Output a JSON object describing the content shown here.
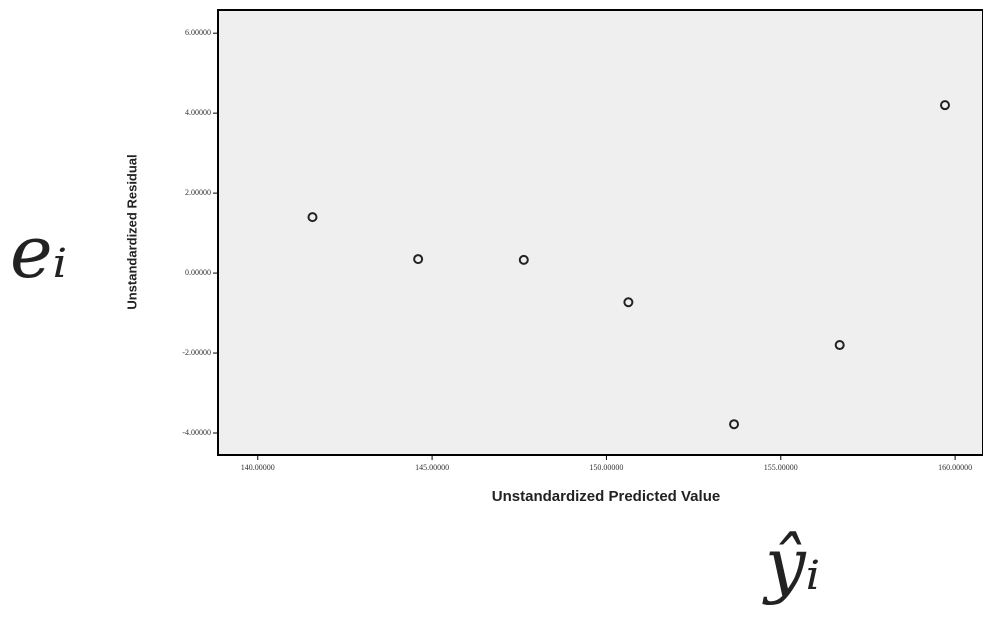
{
  "chart_data": {
    "type": "scatter",
    "x_label": "Unstandardized Predicted Value",
    "y_label": "Unstandardized Residual",
    "annotations": [
      "eᵢ",
      "ŷᵢ"
    ],
    "x": [
      141.57,
      144.6,
      147.63,
      150.63,
      153.66,
      156.69,
      159.71
    ],
    "values": [
      1.4,
      0.35,
      0.33,
      -0.73,
      -3.78,
      -1.8,
      4.2
    ],
    "color": "#222222",
    "xlim": [
      138.86,
      160.8
    ],
    "ylim": [
      -4.55,
      6.58
    ],
    "xticks": [
      {
        "value": 140,
        "label": "140.00000"
      },
      {
        "value": 145,
        "label": "145.00000"
      },
      {
        "value": 150,
        "label": "150.00000"
      },
      {
        "value": 155,
        "label": "155.00000"
      },
      {
        "value": 160,
        "label": "160.00000"
      }
    ],
    "yticks": [
      {
        "value": 6,
        "label": "6.00000"
      },
      {
        "value": 4,
        "label": "4.00000"
      },
      {
        "value": 2,
        "label": "2.00000"
      },
      {
        "value": 0,
        "label": "0.00000"
      },
      {
        "value": -2,
        "label": "-2.00000"
      },
      {
        "value": -4,
        "label": "-4.00000"
      }
    ]
  }
}
